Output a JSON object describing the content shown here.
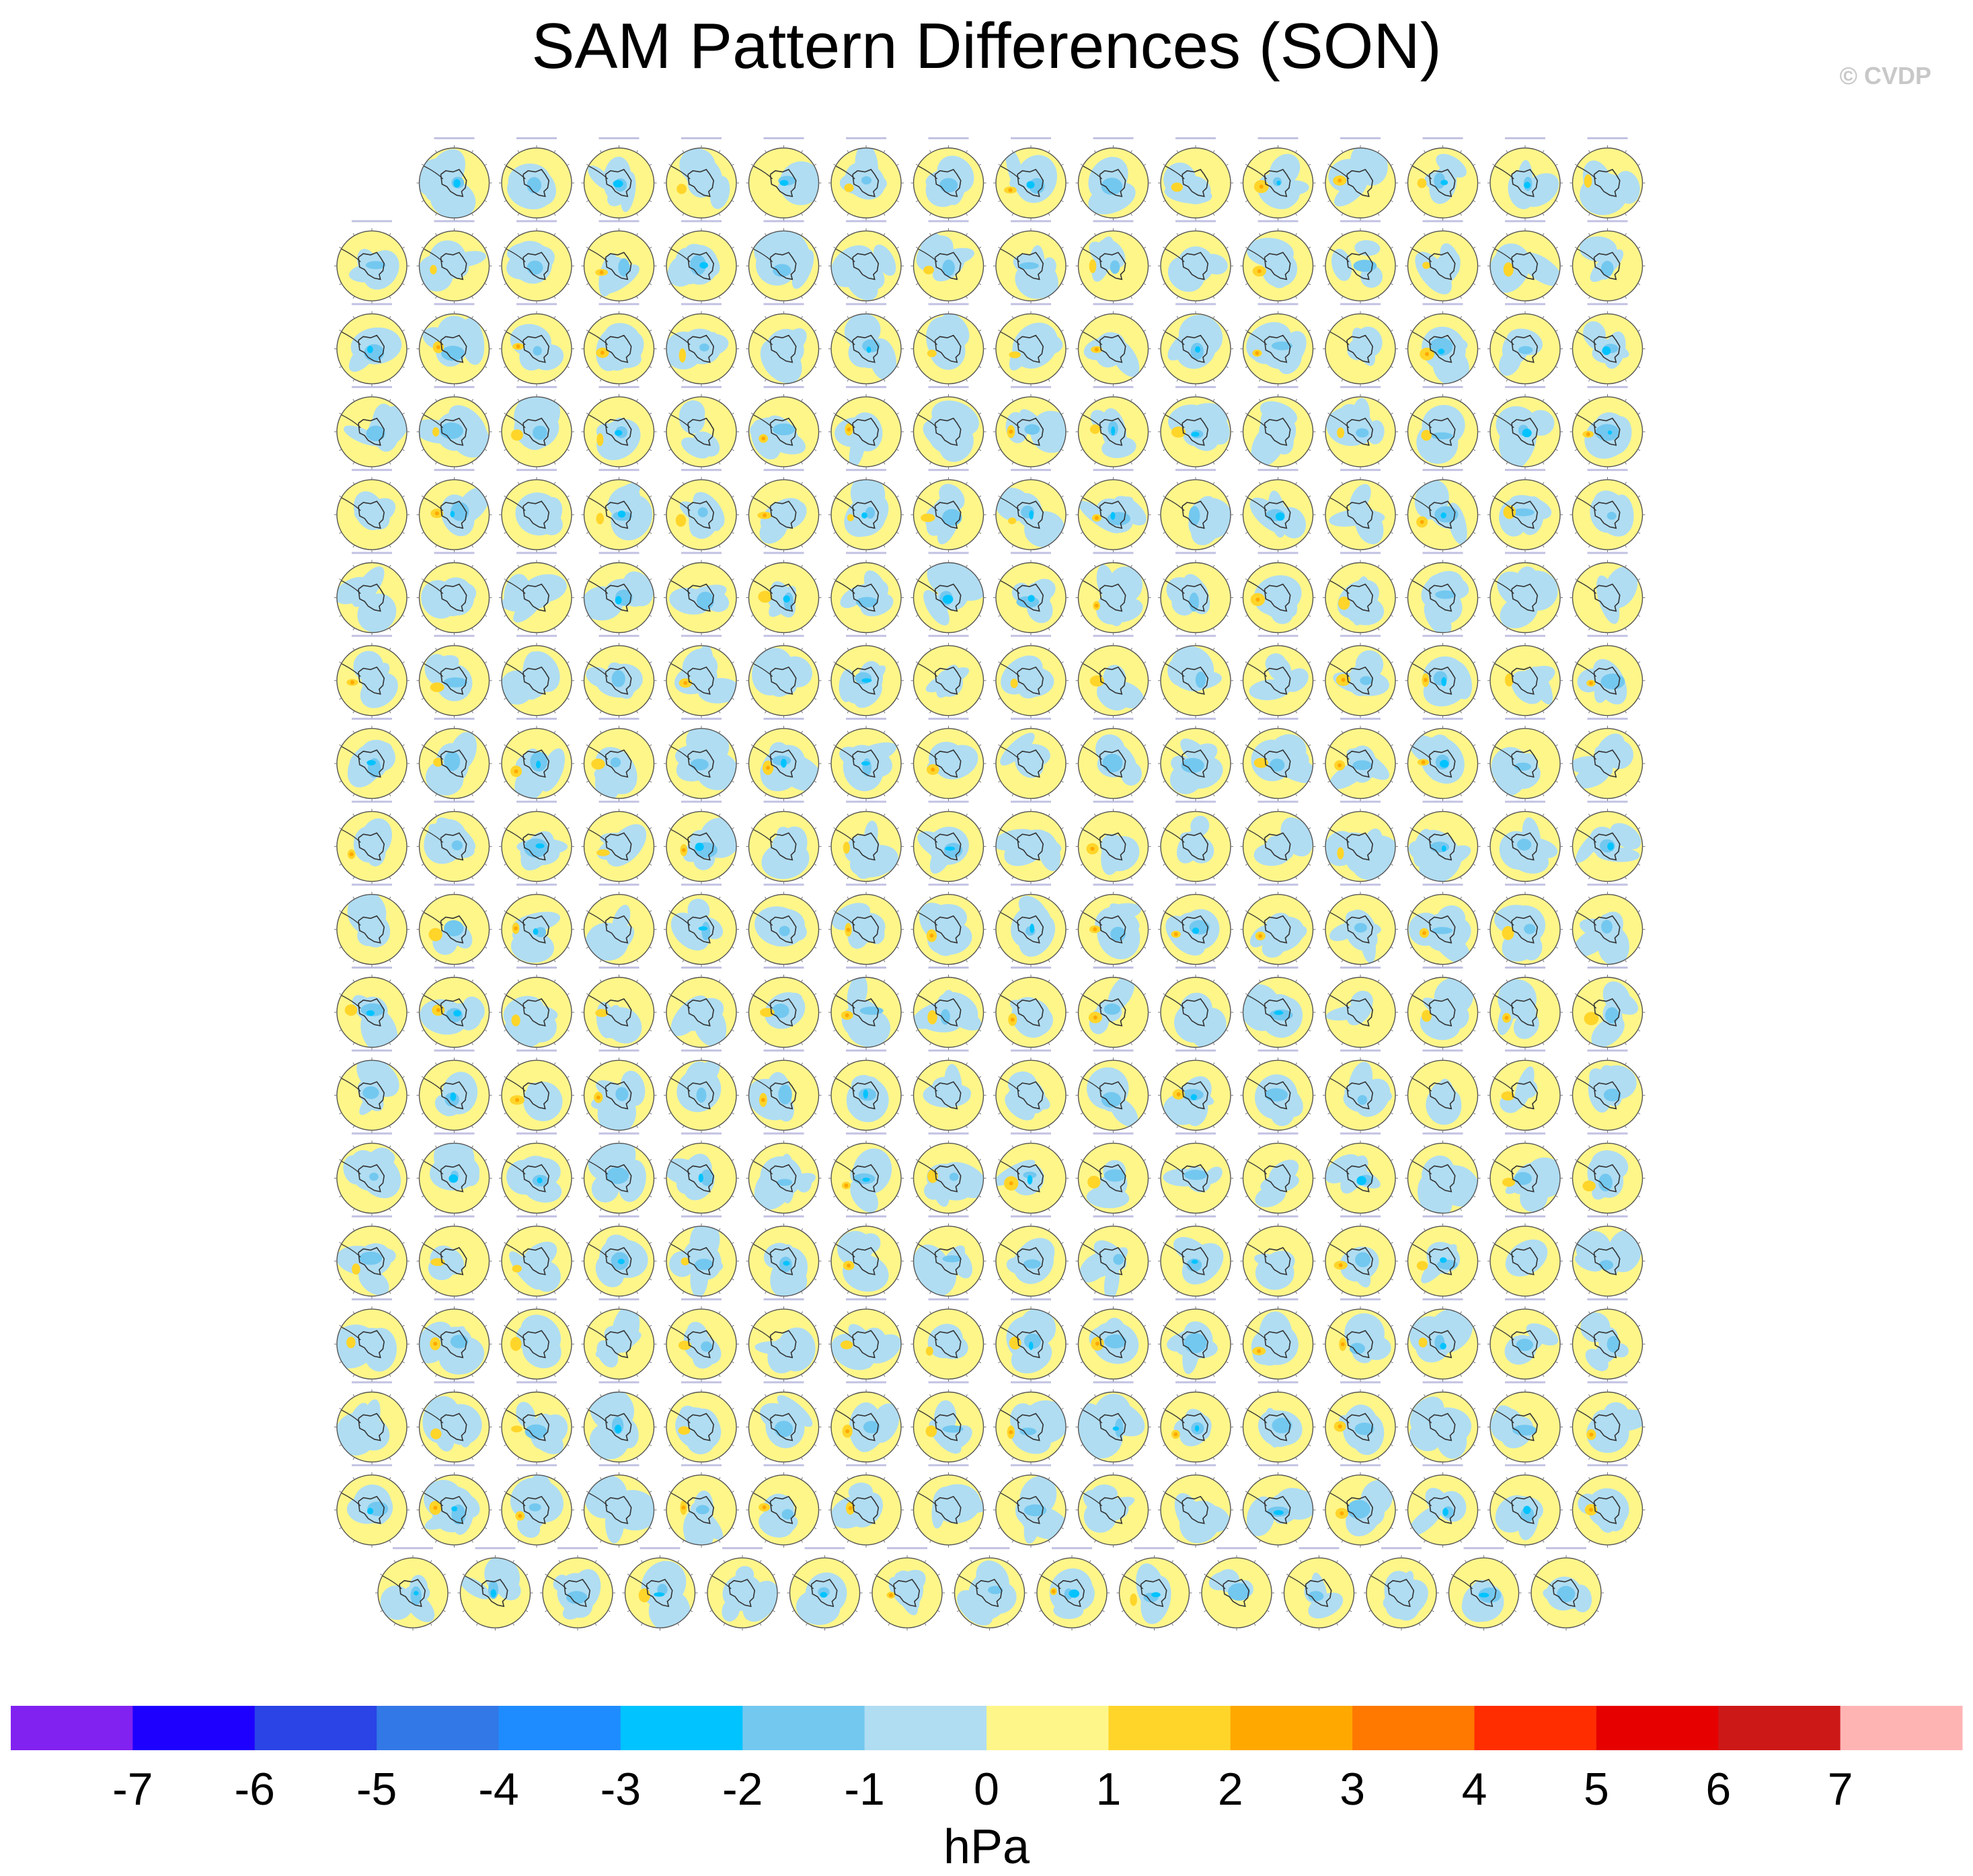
{
  "title": "SAM Pattern Differences (SON)",
  "copyright": "© CVDP",
  "chart_data": {
    "type": "heatmap",
    "title": "SAM Pattern Differences (SON)",
    "description_of_grid": "small multiples of Southern Hemisphere polar-stereographic SLP pattern difference maps",
    "rows": [
      {
        "panels": 15,
        "indent": "right"
      },
      {
        "panels": 16
      },
      {
        "panels": 16
      },
      {
        "panels": 16
      },
      {
        "panels": 16
      },
      {
        "panels": 16
      },
      {
        "panels": 16
      },
      {
        "panels": 16
      },
      {
        "panels": 16
      },
      {
        "panels": 16
      },
      {
        "panels": 16
      },
      {
        "panels": 16
      },
      {
        "panels": 16
      },
      {
        "panels": 16
      },
      {
        "panels": 16
      },
      {
        "panels": 16
      },
      {
        "panels": 16
      },
      {
        "panels": 15,
        "indent": "centered"
      }
    ],
    "colorbar": {
      "units": "hPa",
      "tick_labels": [
        "-7",
        "-6",
        "-5",
        "-4",
        "-3",
        "-2",
        "-1",
        "0",
        "1",
        "2",
        "3",
        "4",
        "5",
        "6",
        "7"
      ],
      "colors": [
        "#8122f0",
        "#1e00ff",
        "#2a44e6",
        "#3278e6",
        "#1e8cff",
        "#00c3ff",
        "#73c8f0",
        "#b0ddf2",
        "#fff68a",
        "#ffd52a",
        "#ffa800",
        "#ff7800",
        "#ff2d00",
        "#e60000",
        "#cd1818",
        "#ffb4b4"
      ]
    }
  }
}
